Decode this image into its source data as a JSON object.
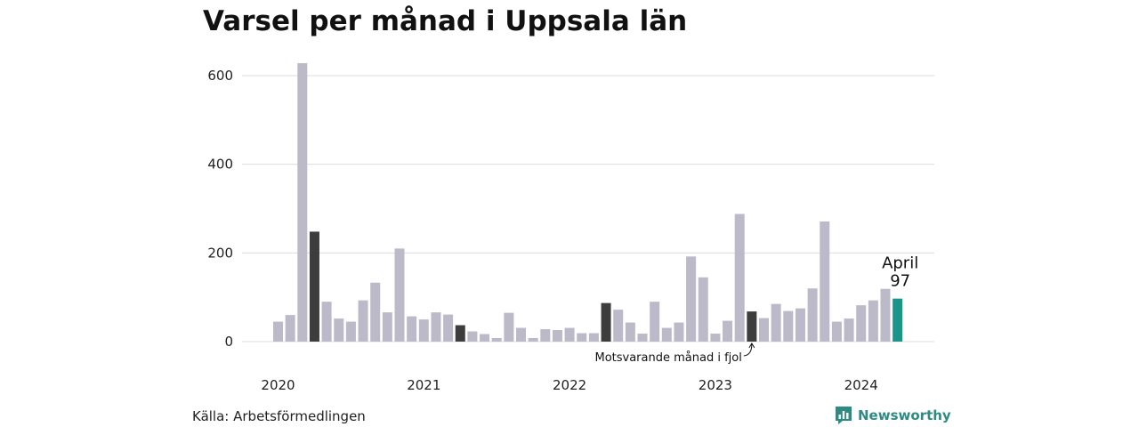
{
  "chart_data": {
    "type": "bar",
    "title": "Varsel per månad i Uppsala län",
    "xlabel": "",
    "ylabel": "",
    "ylim": [
      0,
      650
    ],
    "yticks": [
      0,
      200,
      400,
      600
    ],
    "x_year_labels": [
      "2020",
      "2021",
      "2022",
      "2023",
      "2024"
    ],
    "grid": true,
    "values": [
      45,
      60,
      628,
      248,
      90,
      52,
      45,
      93,
      133,
      66,
      210,
      57,
      50,
      66,
      61,
      37,
      23,
      17,
      8,
      65,
      31,
      8,
      28,
      26,
      31,
      19,
      19,
      87,
      72,
      43,
      18,
      90,
      31,
      43,
      192,
      145,
      18,
      47,
      288,
      68,
      53,
      85,
      69,
      75,
      120,
      271,
      45,
      52,
      82,
      93,
      119,
      97
    ],
    "same_month_last_year_indices": [
      3,
      15,
      27,
      39
    ],
    "current_index": 51,
    "colors": {
      "default": "#bcbac9",
      "same_month_last_year": "#3d3d3d",
      "current": "#1a9688"
    },
    "annotations": {
      "current_label": "April",
      "current_value": "97",
      "last_year_note": "Motsvarande månad i fjol"
    }
  },
  "footer": {
    "source": "Källa: Arbetsförmedlingen",
    "brand": "Newsworthy",
    "brand_icon": "newsworthy-logo-icon"
  }
}
